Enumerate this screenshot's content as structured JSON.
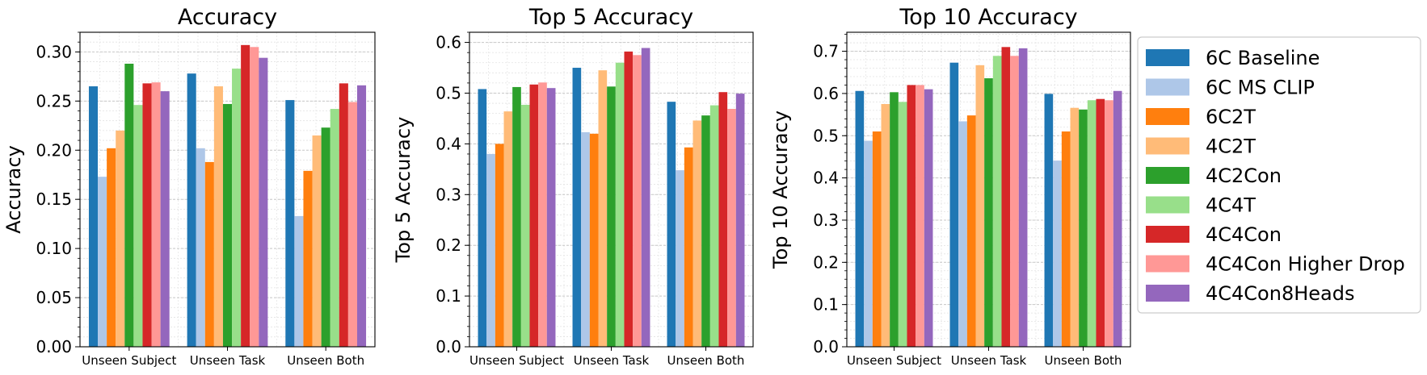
{
  "colors": {
    "6C Baseline": "#1f77b4",
    "6C MS CLIP": "#aec7e8",
    "6C2T": "#ff7f0e",
    "4C2T": "#ffbb78",
    "4C2Con": "#2ca02c",
    "4C4T": "#98df8a",
    "4C4Con": "#d62728",
    "4C4Con Higher Drop": "#ff9896",
    "4C4Con8Heads": "#9467bd"
  },
  "legend": {
    "placement": "right",
    "entries": [
      "6C Baseline",
      "6C MS CLIP",
      "6C2T",
      "4C2T",
      "4C2Con",
      "4C4T",
      "4C4Con",
      "4C4Con Higher Drop",
      "4C4Con8Heads"
    ]
  },
  "chart_data": [
    {
      "type": "bar",
      "title": "Accuracy",
      "xlabel": "",
      "ylabel": "Accuracy",
      "ylim": [
        0,
        0.32
      ],
      "yticks": [
        "0.00",
        "0.05",
        "0.10",
        "0.15",
        "0.20",
        "0.25",
        "0.30"
      ],
      "grid": true,
      "categories": [
        "Unseen Subject",
        "Unseen Task",
        "Unseen Both"
      ],
      "series": [
        {
          "name": "6C Baseline",
          "values": [
            0.265,
            0.278,
            0.251
          ]
        },
        {
          "name": "6C MS CLIP",
          "values": [
            0.173,
            0.202,
            0.133
          ]
        },
        {
          "name": "6C2T",
          "values": [
            0.202,
            0.188,
            0.179
          ]
        },
        {
          "name": "4C2T",
          "values": [
            0.22,
            0.265,
            0.215
          ]
        },
        {
          "name": "4C2Con",
          "values": [
            0.288,
            0.247,
            0.223
          ]
        },
        {
          "name": "4C4T",
          "values": [
            0.246,
            0.283,
            0.242
          ]
        },
        {
          "name": "4C4Con",
          "values": [
            0.268,
            0.307,
            0.268
          ]
        },
        {
          "name": "4C4Con Higher Drop",
          "values": [
            0.269,
            0.305,
            0.249
          ]
        },
        {
          "name": "4C4Con8Heads",
          "values": [
            0.26,
            0.294,
            0.266
          ]
        }
      ]
    },
    {
      "type": "bar",
      "title": "Top 5 Accuracy",
      "xlabel": "",
      "ylabel": "Top 5 Accuracy",
      "ylim": [
        0,
        0.62
      ],
      "yticks": [
        "0.0",
        "0.1",
        "0.2",
        "0.3",
        "0.4",
        "0.5",
        "0.6"
      ],
      "grid": true,
      "categories": [
        "Unseen Subject",
        "Unseen Task",
        "Unseen Both"
      ],
      "series": [
        {
          "name": "6C Baseline",
          "values": [
            0.508,
            0.55,
            0.483
          ]
        },
        {
          "name": "6C MS CLIP",
          "values": [
            0.38,
            0.423,
            0.348
          ]
        },
        {
          "name": "6C2T",
          "values": [
            0.4,
            0.42,
            0.393
          ]
        },
        {
          "name": "4C2T",
          "values": [
            0.464,
            0.545,
            0.446
          ]
        },
        {
          "name": "4C2Con",
          "values": [
            0.512,
            0.513,
            0.456
          ]
        },
        {
          "name": "4C4T",
          "values": [
            0.477,
            0.56,
            0.476
          ]
        },
        {
          "name": "4C4Con",
          "values": [
            0.517,
            0.582,
            0.502
          ]
        },
        {
          "name": "4C4Con Higher Drop",
          "values": [
            0.521,
            0.575,
            0.469
          ]
        },
        {
          "name": "4C4Con8Heads",
          "values": [
            0.51,
            0.589,
            0.499
          ]
        }
      ]
    },
    {
      "type": "bar",
      "title": "Top 10 Accuracy",
      "xlabel": "",
      "ylabel": "Top 10 Accuracy",
      "ylim": [
        0,
        0.745
      ],
      "yticks": [
        "0.0",
        "0.1",
        "0.2",
        "0.3",
        "0.4",
        "0.5",
        "0.6",
        "0.7"
      ],
      "grid": true,
      "categories": [
        "Unseen Subject",
        "Unseen Task",
        "Unseen Both"
      ],
      "series": [
        {
          "name": "6C Baseline",
          "values": [
            0.606,
            0.673,
            0.599
          ]
        },
        {
          "name": "6C MS CLIP",
          "values": [
            0.488,
            0.534,
            0.441
          ]
        },
        {
          "name": "6C2T",
          "values": [
            0.51,
            0.548,
            0.51
          ]
        },
        {
          "name": "4C2T",
          "values": [
            0.575,
            0.667,
            0.566
          ]
        },
        {
          "name": "4C2Con",
          "values": [
            0.603,
            0.636,
            0.562
          ]
        },
        {
          "name": "4C4T",
          "values": [
            0.58,
            0.689,
            0.584
          ]
        },
        {
          "name": "4C4Con",
          "values": [
            0.62,
            0.71,
            0.587
          ]
        },
        {
          "name": "4C4Con Higher Drop",
          "values": [
            0.62,
            0.689,
            0.584
          ]
        },
        {
          "name": "4C4Con8Heads",
          "values": [
            0.61,
            0.707,
            0.606
          ]
        }
      ]
    }
  ]
}
